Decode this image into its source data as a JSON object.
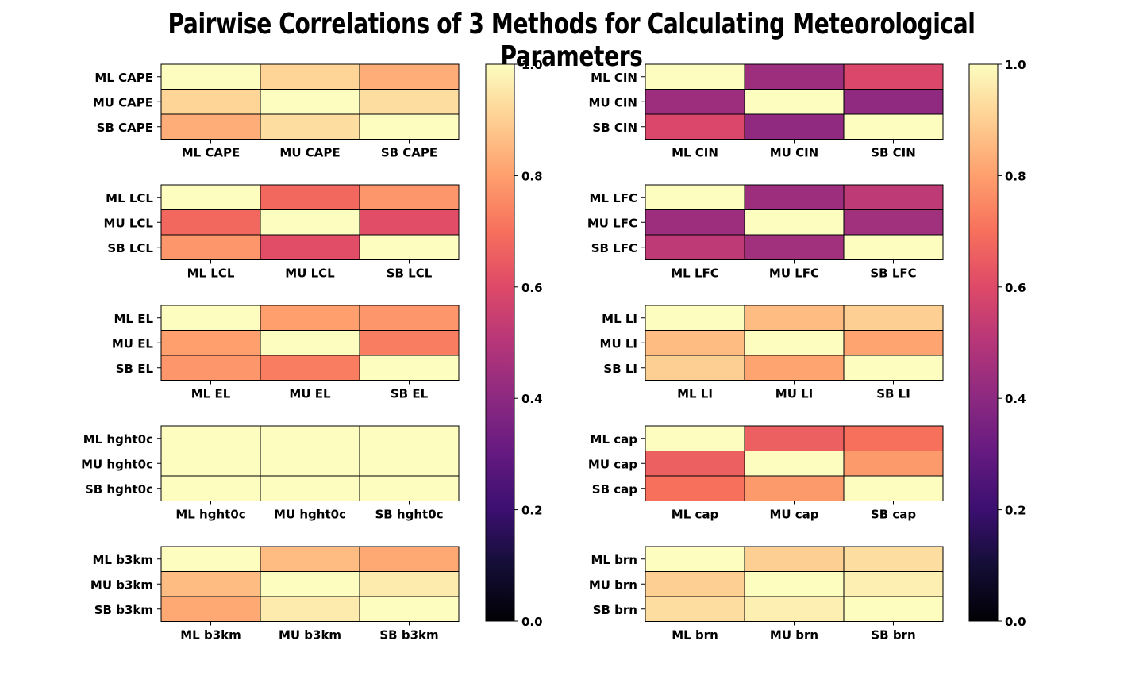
{
  "title": "Pairwise Correlations of 3 Methods for Calculating Meteorological Parameters",
  "colorbar": {
    "ticks": [
      "0.0",
      "0.2",
      "0.4",
      "0.6",
      "0.8",
      "1.0"
    ],
    "colormap": "magma",
    "range": [
      0,
      1
    ]
  },
  "chart_data": [
    {
      "type": "heatmap",
      "labels": [
        "ML CAPE",
        "MU CAPE",
        "SB CAPE"
      ],
      "values": [
        [
          1.0,
          0.91,
          0.83
        ],
        [
          0.91,
          1.0,
          0.93
        ],
        [
          0.83,
          0.93,
          1.0
        ]
      ]
    },
    {
      "type": "heatmap",
      "labels": [
        "ML CIN",
        "MU CIN",
        "SB CIN"
      ],
      "values": [
        [
          1.0,
          0.44,
          0.59
        ],
        [
          0.44,
          1.0,
          0.41
        ],
        [
          0.59,
          0.41,
          1.0
        ]
      ]
    },
    {
      "type": "heatmap",
      "labels": [
        "ML LCL",
        "MU LCL",
        "SB LCL"
      ],
      "values": [
        [
          1.0,
          0.68,
          0.78
        ],
        [
          0.68,
          1.0,
          0.61
        ],
        [
          0.78,
          0.61,
          1.0
        ]
      ]
    },
    {
      "type": "heatmap",
      "labels": [
        "ML LFC",
        "MU LFC",
        "SB LFC"
      ],
      "values": [
        [
          1.0,
          0.44,
          0.52
        ],
        [
          0.44,
          1.0,
          0.45
        ],
        [
          0.52,
          0.45,
          1.0
        ]
      ]
    },
    {
      "type": "heatmap",
      "labels": [
        "ML EL",
        "MU EL",
        "SB EL"
      ],
      "values": [
        [
          1.0,
          0.8,
          0.78
        ],
        [
          0.8,
          1.0,
          0.73
        ],
        [
          0.78,
          0.73,
          1.0
        ]
      ]
    },
    {
      "type": "heatmap",
      "labels": [
        "ML LI",
        "MU LI",
        "SB LI"
      ],
      "values": [
        [
          1.0,
          0.86,
          0.9
        ],
        [
          0.86,
          1.0,
          0.81
        ],
        [
          0.9,
          0.81,
          1.0
        ]
      ]
    },
    {
      "type": "heatmap",
      "labels": [
        "ML hght0c",
        "MU hght0c",
        "SB hght0c"
      ],
      "values": [
        [
          1.0,
          1.0,
          1.0
        ],
        [
          1.0,
          1.0,
          1.0
        ],
        [
          1.0,
          1.0,
          1.0
        ]
      ]
    },
    {
      "type": "heatmap",
      "labels": [
        "ML cap",
        "MU cap",
        "SB cap"
      ],
      "values": [
        [
          1.0,
          0.66,
          0.7
        ],
        [
          0.66,
          1.0,
          0.79
        ],
        [
          0.7,
          0.79,
          1.0
        ]
      ]
    },
    {
      "type": "heatmap",
      "labels": [
        "ML b3km",
        "MU b3km",
        "SB b3km"
      ],
      "values": [
        [
          1.0,
          0.86,
          0.82
        ],
        [
          0.86,
          1.0,
          0.96
        ],
        [
          0.82,
          0.96,
          1.0
        ]
      ]
    },
    {
      "type": "heatmap",
      "labels": [
        "ML brn",
        "MU brn",
        "SB brn"
      ],
      "values": [
        [
          1.0,
          0.9,
          0.93
        ],
        [
          0.9,
          1.0,
          0.97
        ],
        [
          0.93,
          0.97,
          1.0
        ]
      ]
    }
  ]
}
